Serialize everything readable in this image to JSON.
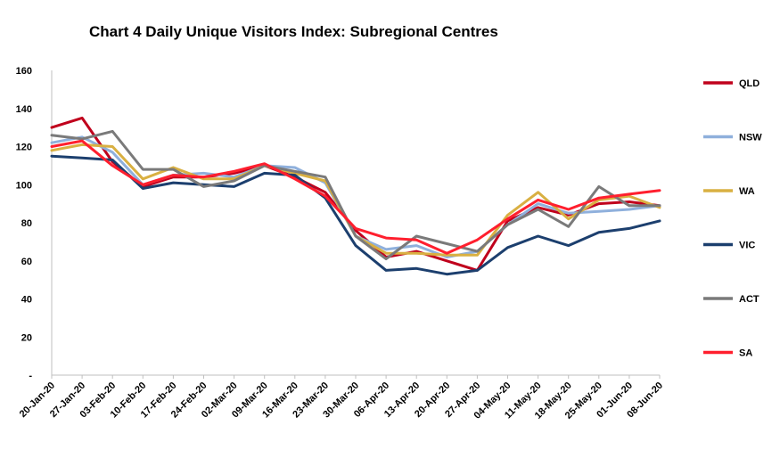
{
  "chart_data": {
    "type": "line",
    "title": "Chart 4 Daily Unique Visitors Index: Subregional Centres",
    "xlabel": "",
    "ylabel": "",
    "ylim": [
      0,
      160
    ],
    "yticks": [
      0,
      20,
      40,
      60,
      80,
      100,
      120,
      140,
      160
    ],
    "ytick_labels": [
      "-",
      "20",
      "40",
      "60",
      "80",
      "100",
      "120",
      "140",
      "160"
    ],
    "grid": false,
    "legend": "right",
    "categories": [
      "20-Jan-20",
      "27-Jan-20",
      "03-Feb-20",
      "10-Feb-20",
      "17-Feb-20",
      "24-Feb-20",
      "02-Mar-20",
      "09-Mar-20",
      "16-Mar-20",
      "23-Mar-20",
      "30-Mar-20",
      "06-Apr-20",
      "13-Apr-20",
      "20-Apr-20",
      "27-Apr-20",
      "04-May-20",
      "11-May-20",
      "18-May-20",
      "25-May-20",
      "01-Jun-20",
      "08-Jun-20"
    ],
    "series": [
      {
        "name": "QLD",
        "color": "#c0001c",
        "values": [
          130,
          135,
          112,
          99,
          104,
          104,
          106,
          110,
          104,
          96,
          76,
          62,
          65,
          60,
          55,
          81,
          88,
          84,
          90,
          91,
          89
        ]
      },
      {
        "name": "NSW",
        "color": "#8fb0dc",
        "values": [
          122,
          125,
          117,
          100,
          105,
          106,
          104,
          110,
          109,
          101,
          73,
          66,
          68,
          62,
          65,
          79,
          90,
          85,
          86,
          87,
          89
        ]
      },
      {
        "name": "WA",
        "color": "#d9b042",
        "values": [
          118,
          121,
          120,
          103,
          109,
          103,
          103,
          110,
          106,
          102,
          73,
          64,
          64,
          63,
          63,
          84,
          96,
          82,
          92,
          94,
          88
        ]
      },
      {
        "name": "VIC",
        "color": "#1c3f6e",
        "values": [
          115,
          114,
          113,
          98,
          101,
          100,
          99,
          106,
          105,
          93,
          68,
          55,
          56,
          53,
          55,
          67,
          73,
          68,
          75,
          77,
          81
        ]
      },
      {
        "name": "ACT",
        "color": "#7a7a7a",
        "values": [
          126,
          124,
          128,
          108,
          108,
          99,
          102,
          110,
          107,
          104,
          73,
          61,
          73,
          69,
          65,
          79,
          87,
          78,
          99,
          89,
          89
        ]
      },
      {
        "name": "SA",
        "color": "#ff1f2e",
        "values": [
          120,
          123,
          110,
          100,
          105,
          104,
          107,
          111,
          103,
          94,
          77,
          72,
          71,
          64,
          71,
          82,
          92,
          87,
          93,
          95,
          97
        ]
      }
    ]
  }
}
